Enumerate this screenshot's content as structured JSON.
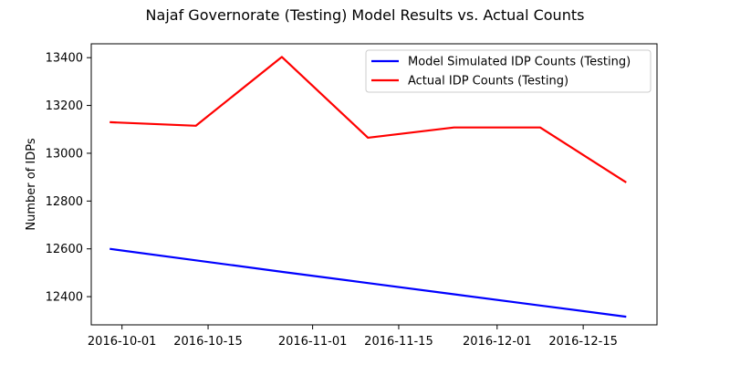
{
  "chart_data": {
    "type": "line",
    "title": "Najaf Governorate (Testing) Model Results vs. Actual Counts",
    "xlabel": "",
    "ylabel": "Number of IDPs",
    "x_type": "date",
    "xlim": [
      "2016-09-26",
      "2016-12-27"
    ],
    "ylim": [
      12282,
      13458
    ],
    "x_ticks": [
      "2016-10-01",
      "2016-10-15",
      "2016-11-01",
      "2016-11-15",
      "2016-12-01",
      "2016-12-15"
    ],
    "y_ticks": [
      12400,
      12600,
      12800,
      13000,
      13200,
      13400
    ],
    "grid": false,
    "legend_position": "top-right",
    "series": [
      {
        "name": "Model Simulated IDP Counts (Testing)",
        "color": "#0000ff",
        "x": [
          "2016-09-29",
          "2016-10-13",
          "2016-10-27",
          "2016-11-10",
          "2016-11-24",
          "2016-12-08",
          "2016-12-22"
        ],
        "values": [
          12600,
          12552,
          12504,
          12457,
          12410,
          12363,
          12316
        ]
      },
      {
        "name": "Actual IDP Counts (Testing)",
        "color": "#ff0000",
        "x": [
          "2016-09-29",
          "2016-10-13",
          "2016-10-27",
          "2016-11-10",
          "2016-11-24",
          "2016-12-08",
          "2016-12-22"
        ],
        "values": [
          13130,
          13115,
          13403,
          13065,
          13108,
          13108,
          12878
        ]
      }
    ]
  }
}
